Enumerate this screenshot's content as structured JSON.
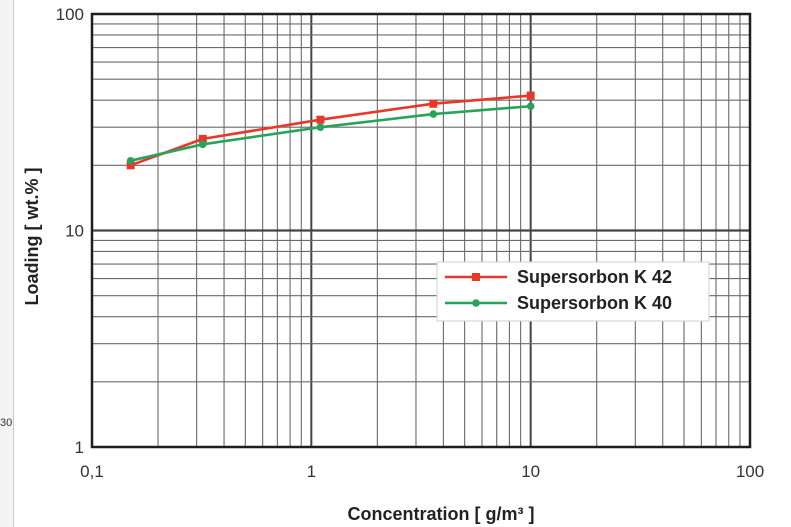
{
  "chart_data": {
    "type": "line",
    "title": "",
    "xlabel": "Concentration [ g/m³ ]",
    "ylabel": "Loading [ wt.% ]",
    "x_scale": "log",
    "y_scale": "log",
    "xlim": [
      0.1,
      100
    ],
    "ylim": [
      1,
      100
    ],
    "x_tick_labels": [
      "0,1",
      "1",
      "10",
      "100"
    ],
    "x_tick_values": [
      0.1,
      1,
      10,
      100
    ],
    "y_tick_labels": [
      "1",
      "10",
      "100"
    ],
    "y_tick_values": [
      1,
      10,
      100
    ],
    "grid": true,
    "legend_position": "right",
    "series": [
      {
        "name": "Supersorbon K 42",
        "color": "#e8372b",
        "marker": "square",
        "x": [
          0.15,
          0.32,
          1.1,
          3.6,
          10
        ],
        "y": [
          20,
          26.5,
          32.5,
          38.5,
          42
        ]
      },
      {
        "name": "Supersorbon K 40",
        "color": "#2aa35a",
        "marker": "circle",
        "x": [
          0.15,
          0.32,
          1.1,
          3.6,
          10
        ],
        "y": [
          21,
          25,
          30,
          34.5,
          37.5
        ]
      }
    ]
  },
  "edge_label": "30"
}
